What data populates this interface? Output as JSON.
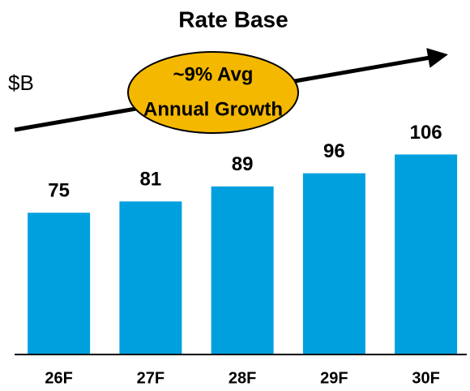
{
  "chart_data": {
    "type": "bar",
    "title": "Rate Base",
    "y_label": "$B",
    "annotation": [
      "~9% Avg",
      "Annual Growth"
    ],
    "categories": [
      "26F",
      "27F",
      "28F",
      "29F",
      "30F"
    ],
    "values": [
      75,
      81,
      89,
      96,
      106
    ],
    "color": "#00a0df",
    "ylim": [
      0,
      120
    ]
  }
}
